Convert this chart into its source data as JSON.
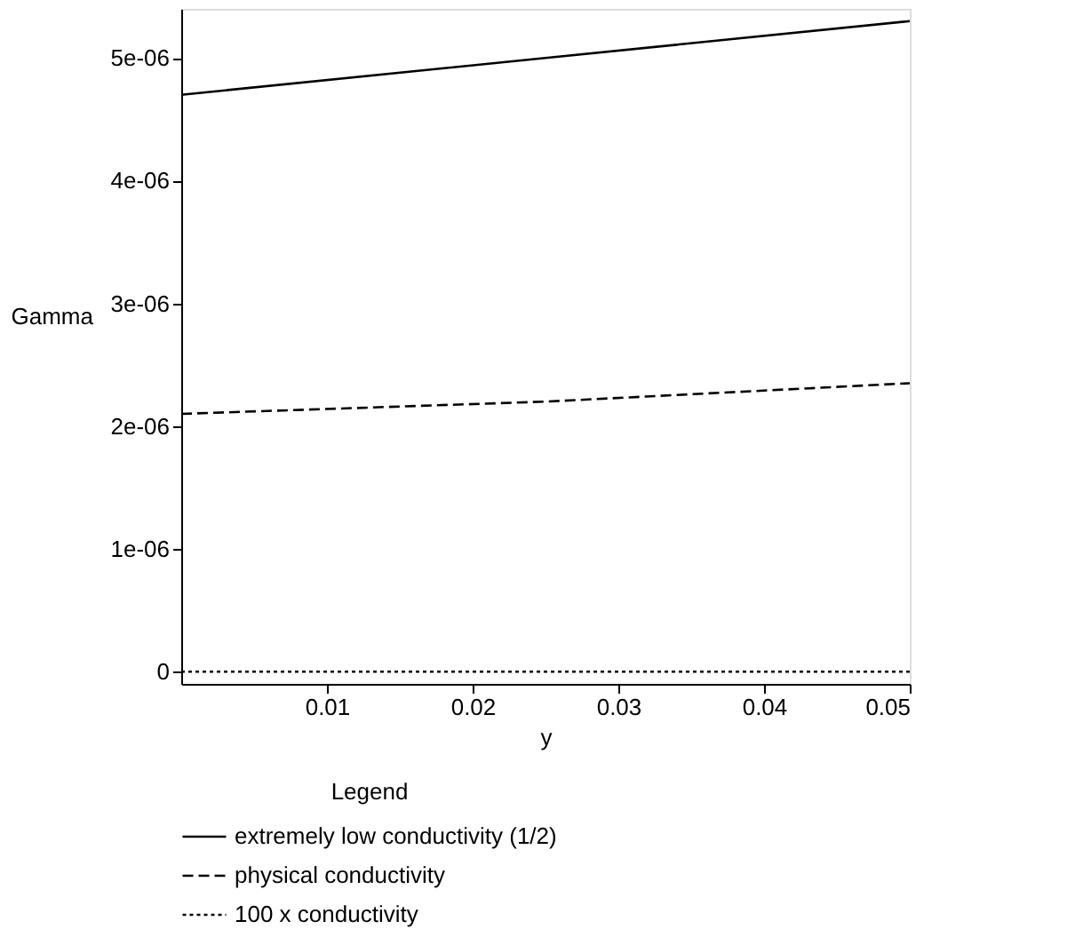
{
  "chart_data": {
    "type": "line",
    "xlabel": "y",
    "ylabel": "Gamma",
    "legend_title": "Legend",
    "legend": "bottom",
    "grid": false,
    "xlim": [
      0,
      0.05
    ],
    "xticks": [
      0.01,
      0.02,
      0.03,
      0.04,
      0.05
    ],
    "ylim": [
      -1e-07,
      5.4e-06
    ],
    "yticks": [
      0,
      {
        "value": 1e-06,
        "label": "1e-06"
      },
      {
        "value": 2e-06,
        "label": "2e-06"
      },
      {
        "value": 3e-06,
        "label": "3e-06"
      },
      {
        "value": 4e-06,
        "label": "4e-06"
      },
      {
        "value": 5e-06,
        "label": "5e-06"
      }
    ],
    "series": [
      {
        "name": "extremely low conductivity (1/2)",
        "color": "#000000",
        "line_style": "solid",
        "x": [
          0,
          0.025,
          0.05
        ],
        "values": [
          4.7e-06,
          5e-06,
          5.3e-06
        ]
      },
      {
        "name": "physical conductivity",
        "color": "#000000",
        "line_style": "dashed",
        "x": [
          0,
          0.025,
          0.05
        ],
        "values": [
          2.1e-06,
          2.2e-06,
          2.35e-06
        ]
      },
      {
        "name": "100 x conductivity",
        "color": "#000000",
        "line_style": "dotted",
        "x": [
          0,
          0.025,
          0.05
        ],
        "values": [
          0,
          0,
          0
        ]
      }
    ]
  }
}
